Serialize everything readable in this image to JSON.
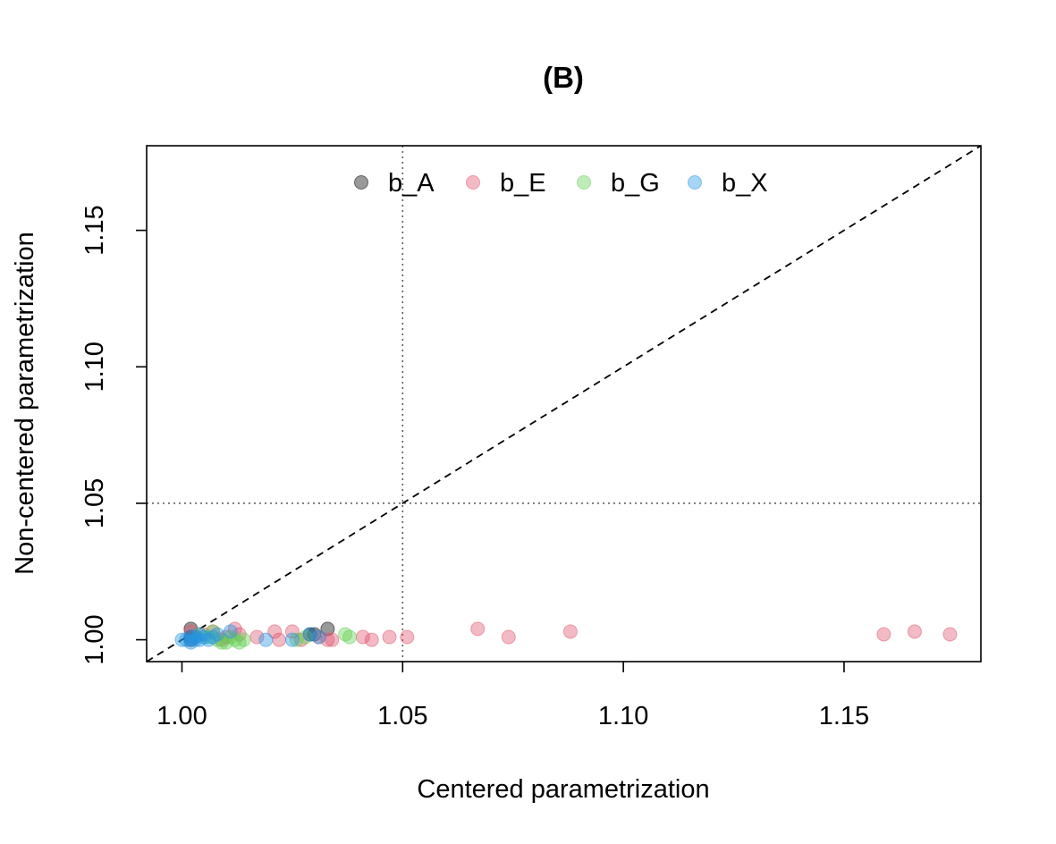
{
  "chart_data": {
    "type": "scatter",
    "title": "(B)",
    "xlabel": "Centered parametrization",
    "ylabel": "Non-centered parametrization",
    "xlim": [
      0.992,
      1.181
    ],
    "ylim": [
      0.992,
      1.181
    ],
    "xticks": [
      "1.00",
      "1.05",
      "1.10",
      "1.15"
    ],
    "yticks": [
      "1.00",
      "1.05",
      "1.10",
      "1.15"
    ],
    "reference_lines": {
      "diagonal": "y = x (dashed)",
      "vertical": 1.05,
      "horizontal": 1.05
    },
    "legend_position": "top-center",
    "series": [
      {
        "name": "b_A",
        "color": "#000000",
        "points": [
          [
            1.002,
            1.0
          ],
          [
            1.002,
            1.004
          ],
          [
            1.003,
            1.001
          ],
          [
            1.029,
            1.002
          ],
          [
            1.03,
            1.002
          ],
          [
            1.033,
            1.004
          ],
          [
            1.002,
            1.001
          ]
        ]
      },
      {
        "name": "b_E",
        "color": "#DF536B",
        "points": [
          [
            1.002,
            1.003
          ],
          [
            1.003,
            1.001
          ],
          [
            1.005,
            1.002
          ],
          [
            1.007,
            1.003
          ],
          [
            1.009,
            1.0
          ],
          [
            1.01,
            1.001
          ],
          [
            1.012,
            1.004
          ],
          [
            1.013,
            1.002
          ],
          [
            1.017,
            1.001
          ],
          [
            1.021,
            1.003
          ],
          [
            1.022,
            1.0
          ],
          [
            1.025,
            1.003
          ],
          [
            1.027,
            1.0
          ],
          [
            1.031,
            1.001
          ],
          [
            1.033,
            1.0
          ],
          [
            1.034,
            1.0
          ],
          [
            1.041,
            1.001
          ],
          [
            1.043,
            1.0
          ],
          [
            1.047,
            1.001
          ],
          [
            1.051,
            1.001
          ],
          [
            1.067,
            1.004
          ],
          [
            1.074,
            1.001
          ],
          [
            1.088,
            1.003
          ],
          [
            1.159,
            1.002
          ],
          [
            1.166,
            1.003
          ],
          [
            1.174,
            1.002
          ]
        ]
      },
      {
        "name": "b_G",
        "color": "#61D04F",
        "points": [
          [
            1.004,
            1.002
          ],
          [
            1.006,
            1.001
          ],
          [
            1.007,
            1.003
          ],
          [
            1.008,
            1.0
          ],
          [
            1.009,
            0.999
          ],
          [
            1.01,
            0.999
          ],
          [
            1.011,
            1.001
          ],
          [
            1.012,
            1.0
          ],
          [
            1.013,
            0.999
          ],
          [
            1.014,
            1.0
          ],
          [
            1.026,
            1.0
          ],
          [
            1.028,
            1.001
          ],
          [
            1.037,
            1.002
          ],
          [
            1.038,
            1.001
          ]
        ]
      },
      {
        "name": "b_X",
        "color": "#2297E6",
        "points": [
          [
            1.0,
            1.0
          ],
          [
            1.001,
            1.0
          ],
          [
            1.002,
            1.001
          ],
          [
            1.002,
            0.999
          ],
          [
            1.003,
            1.0
          ],
          [
            1.003,
            1.001
          ],
          [
            1.004,
            1.0
          ],
          [
            1.004,
            1.002
          ],
          [
            1.005,
            1.001
          ],
          [
            1.006,
            1.0
          ],
          [
            1.007,
            1.001
          ],
          [
            1.008,
            1.002
          ],
          [
            1.011,
            1.003
          ],
          [
            1.019,
            1.0
          ],
          [
            1.025,
            1.0
          ],
          [
            1.029,
            1.002
          ],
          [
            1.031,
            1.001
          ]
        ]
      }
    ]
  }
}
